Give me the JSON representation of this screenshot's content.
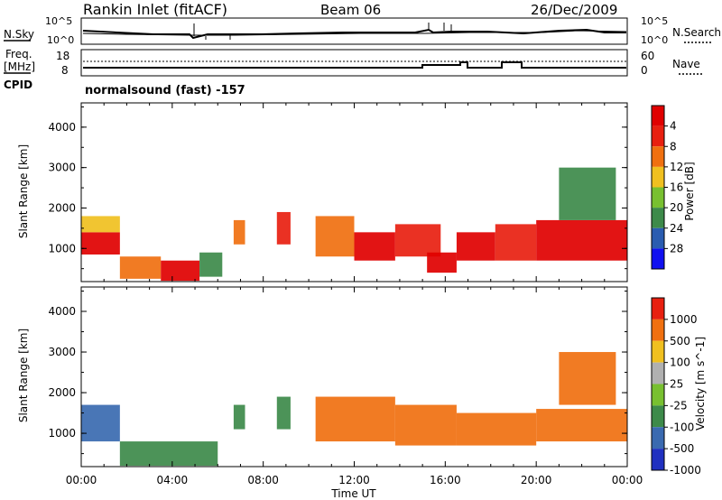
{
  "header": {
    "title": "Rankin Inlet (fitACF)",
    "beam": "Beam 06",
    "date": "26/Dec/2009"
  },
  "noise_panel": {
    "left_label": "N.Sky",
    "left_ticks": [
      "10^5",
      "10^0"
    ],
    "right_label": "N.Search",
    "right_ticks": [
      "10^5",
      "10^0"
    ]
  },
  "freq_panel": {
    "left_label_1": "Freq.",
    "left_label_2": "[MHz]",
    "left_ticks": [
      "18",
      "8"
    ],
    "right_label": "Nave",
    "right_ticks": [
      "60",
      "0"
    ],
    "cpid_label": "CPID",
    "cpid_text": "normalsound (fast) -157"
  },
  "x_axis": {
    "label": "Time UT",
    "ticks": [
      "00:00",
      "04:00",
      "08:00",
      "12:00",
      "16:00",
      "20:00",
      "00:00"
    ]
  },
  "chart_data": [
    {
      "type": "heatmap",
      "quantity": "Power",
      "ylabel": "Slant Range [km]",
      "xlabel": "Time UT",
      "xlim": [
        0,
        24
      ],
      "ylim": [
        180,
        4600
      ],
      "yticks": [
        1000,
        2000,
        3000,
        4000
      ],
      "colorbar_label": "Power [dB]",
      "colorbar_ticks": [
        "4",
        "8",
        "12",
        "16",
        "20",
        "24",
        "28"
      ],
      "colorscale": [
        "#1010f0",
        "#2a5cb0",
        "#3d8a4a",
        "#78c030",
        "#f0c020",
        "#f07010",
        "#e82010",
        "#e00000"
      ],
      "regions": [
        {
          "t": [
            0.0,
            1.7
          ],
          "r": [
            850,
            1400
          ],
          "level": 7
        },
        {
          "t": [
            0.0,
            1.7
          ],
          "r": [
            1400,
            1800
          ],
          "level": 4
        },
        {
          "t": [
            1.7,
            3.5
          ],
          "r": [
            250,
            800
          ],
          "level": 5
        },
        {
          "t": [
            3.5,
            5.2
          ],
          "r": [
            200,
            700
          ],
          "level": 7
        },
        {
          "t": [
            5.2,
            6.2
          ],
          "r": [
            300,
            900
          ],
          "level": 2
        },
        {
          "t": [
            6.7,
            7.2
          ],
          "r": [
            1100,
            1700
          ],
          "level": 5
        },
        {
          "t": [
            8.6,
            9.2
          ],
          "r": [
            1100,
            1900
          ],
          "level": 6
        },
        {
          "t": [
            10.3,
            12.0
          ],
          "r": [
            800,
            1800
          ],
          "level": 5
        },
        {
          "t": [
            12.0,
            13.8
          ],
          "r": [
            700,
            1400
          ],
          "level": 7
        },
        {
          "t": [
            13.8,
            15.8
          ],
          "r": [
            800,
            1600
          ],
          "level": 6
        },
        {
          "t": [
            15.2,
            16.5
          ],
          "r": [
            400,
            900
          ],
          "level": 7
        },
        {
          "t": [
            16.5,
            18.2
          ],
          "r": [
            700,
            1400
          ],
          "level": 7
        },
        {
          "t": [
            18.2,
            20.0
          ],
          "r": [
            700,
            1600
          ],
          "level": 6
        },
        {
          "t": [
            20.0,
            24.0
          ],
          "r": [
            700,
            1700
          ],
          "level": 7
        },
        {
          "t": [
            21.0,
            23.5
          ],
          "r": [
            1700,
            3000
          ],
          "level": 2
        }
      ]
    },
    {
      "type": "heatmap",
      "quantity": "Velocity",
      "ylabel": "Slant Range [km]",
      "xlabel": "Time UT",
      "xlim": [
        0,
        24
      ],
      "ylim": [
        180,
        4600
      ],
      "yticks": [
        1000,
        2000,
        3000,
        4000
      ],
      "colorbar_label": "Velocity [m s^-1]",
      "colorbar_ticks": [
        "1000",
        "500",
        "100",
        "25",
        "-25",
        "-100",
        "-500",
        "-1000"
      ],
      "colorscale": [
        "#2030c0",
        "#3a6ab0",
        "#3d8a4a",
        "#78c030",
        "#b0b0b0",
        "#f0c020",
        "#f07010",
        "#e82010"
      ],
      "regions": [
        {
          "t": [
            0.0,
            1.7
          ],
          "r": [
            800,
            1700
          ],
          "level": 1
        },
        {
          "t": [
            1.7,
            6.0
          ],
          "r": [
            200,
            800
          ],
          "level": 2
        },
        {
          "t": [
            6.7,
            7.2
          ],
          "r": [
            1100,
            1700
          ],
          "level": 2
        },
        {
          "t": [
            8.6,
            9.2
          ],
          "r": [
            1100,
            1900
          ],
          "level": 2
        },
        {
          "t": [
            10.3,
            13.8
          ],
          "r": [
            800,
            1900
          ],
          "level": 6
        },
        {
          "t": [
            13.8,
            16.5
          ],
          "r": [
            700,
            1700
          ],
          "level": 6
        },
        {
          "t": [
            16.5,
            20.0
          ],
          "r": [
            700,
            1500
          ],
          "level": 6
        },
        {
          "t": [
            20.0,
            24.0
          ],
          "r": [
            800,
            1600
          ],
          "level": 6
        },
        {
          "t": [
            21.0,
            23.5
          ],
          "r": [
            1700,
            3000
          ],
          "level": 6
        }
      ]
    }
  ]
}
